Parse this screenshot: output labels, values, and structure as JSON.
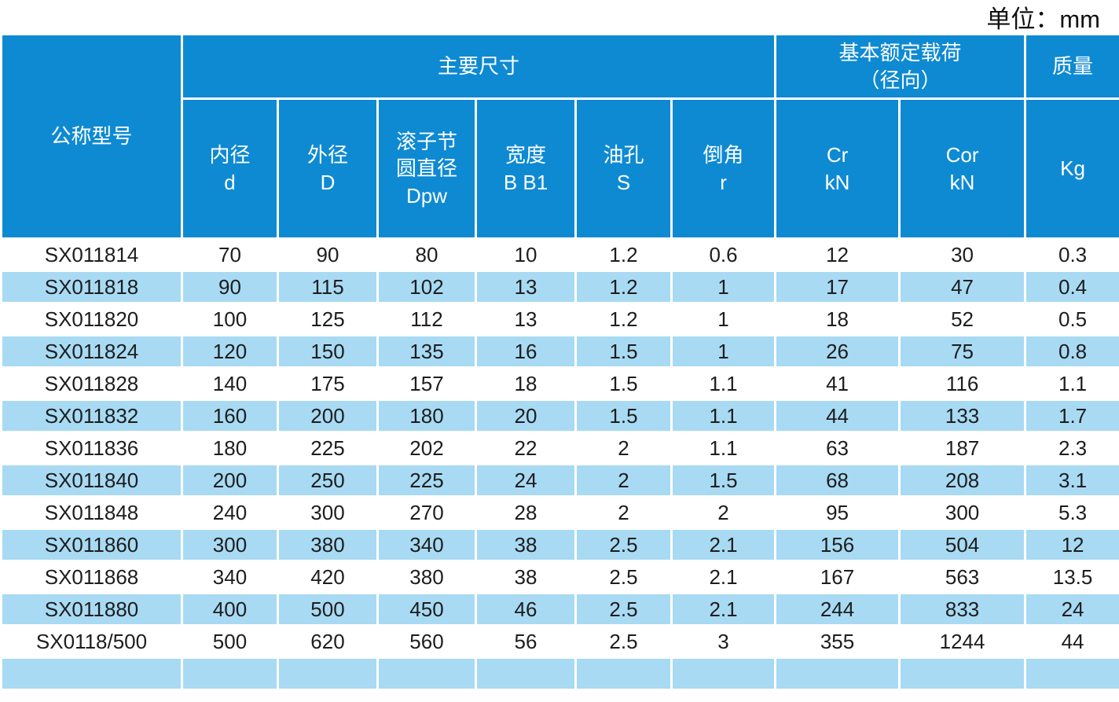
{
  "unit_label": "单位：mm",
  "colors": {
    "header_bg": "#0e8ad3",
    "row_alt_bg": "#a8daf3",
    "data_text": "#1d1d1d",
    "header_text": "#ffffff"
  },
  "table": {
    "header": {
      "model": "公称型号",
      "main_dimensions": "主要尺寸",
      "rated_load": [
        "基本额定载荷",
        "（径向）"
      ],
      "mass": "质量",
      "bore": [
        "内径",
        "d"
      ],
      "outer": [
        "外径",
        "D"
      ],
      "pitch": [
        "滚子节",
        "圆直径",
        "Dpw"
      ],
      "width": [
        "宽度",
        "B B1"
      ],
      "oil_hole": [
        "油孔",
        "S"
      ],
      "chamfer": [
        "倒角",
        "r"
      ],
      "cr": [
        "Cr",
        "kN"
      ],
      "cor": [
        "Cor",
        "kN"
      ],
      "kg": [
        "Kg"
      ]
    },
    "rows": [
      [
        "SX011814",
        "70",
        "90",
        "80",
        "10",
        "1.2",
        "0.6",
        "12",
        "30",
        "0.3"
      ],
      [
        "SX011818",
        "90",
        "115",
        "102",
        "13",
        "1.2",
        "1",
        "17",
        "47",
        "0.4"
      ],
      [
        "SX011820",
        "100",
        "125",
        "112",
        "13",
        "1.2",
        "1",
        "18",
        "52",
        "0.5"
      ],
      [
        "SX011824",
        "120",
        "150",
        "135",
        "16",
        "1.5",
        "1",
        "26",
        "75",
        "0.8"
      ],
      [
        "SX011828",
        "140",
        "175",
        "157",
        "18",
        "1.5",
        "1.1",
        "41",
        "116",
        "1.1"
      ],
      [
        "SX011832",
        "160",
        "200",
        "180",
        "20",
        "1.5",
        "1.1",
        "44",
        "133",
        "1.7"
      ],
      [
        "SX011836",
        "180",
        "225",
        "202",
        "22",
        "2",
        "1.1",
        "63",
        "187",
        "2.3"
      ],
      [
        "SX011840",
        "200",
        "250",
        "225",
        "24",
        "2",
        "1.5",
        "68",
        "208",
        "3.1"
      ],
      [
        "SX011848",
        "240",
        "300",
        "270",
        "28",
        "2",
        "2",
        "95",
        "300",
        "5.3"
      ],
      [
        "SX011860",
        "300",
        "380",
        "340",
        "38",
        "2.5",
        "2.1",
        "156",
        "504",
        "12"
      ],
      [
        "SX011868",
        "340",
        "420",
        "380",
        "38",
        "2.5",
        "2.1",
        "167",
        "563",
        "13.5"
      ],
      [
        "SX011880",
        "400",
        "500",
        "450",
        "46",
        "2.5",
        "2.1",
        "244",
        "833",
        "24"
      ],
      [
        "SX0118/500",
        "500",
        "620",
        "560",
        "56",
        "2.5",
        "3",
        "355",
        "1244",
        "44"
      ]
    ],
    "partial_row_visible": true
  }
}
